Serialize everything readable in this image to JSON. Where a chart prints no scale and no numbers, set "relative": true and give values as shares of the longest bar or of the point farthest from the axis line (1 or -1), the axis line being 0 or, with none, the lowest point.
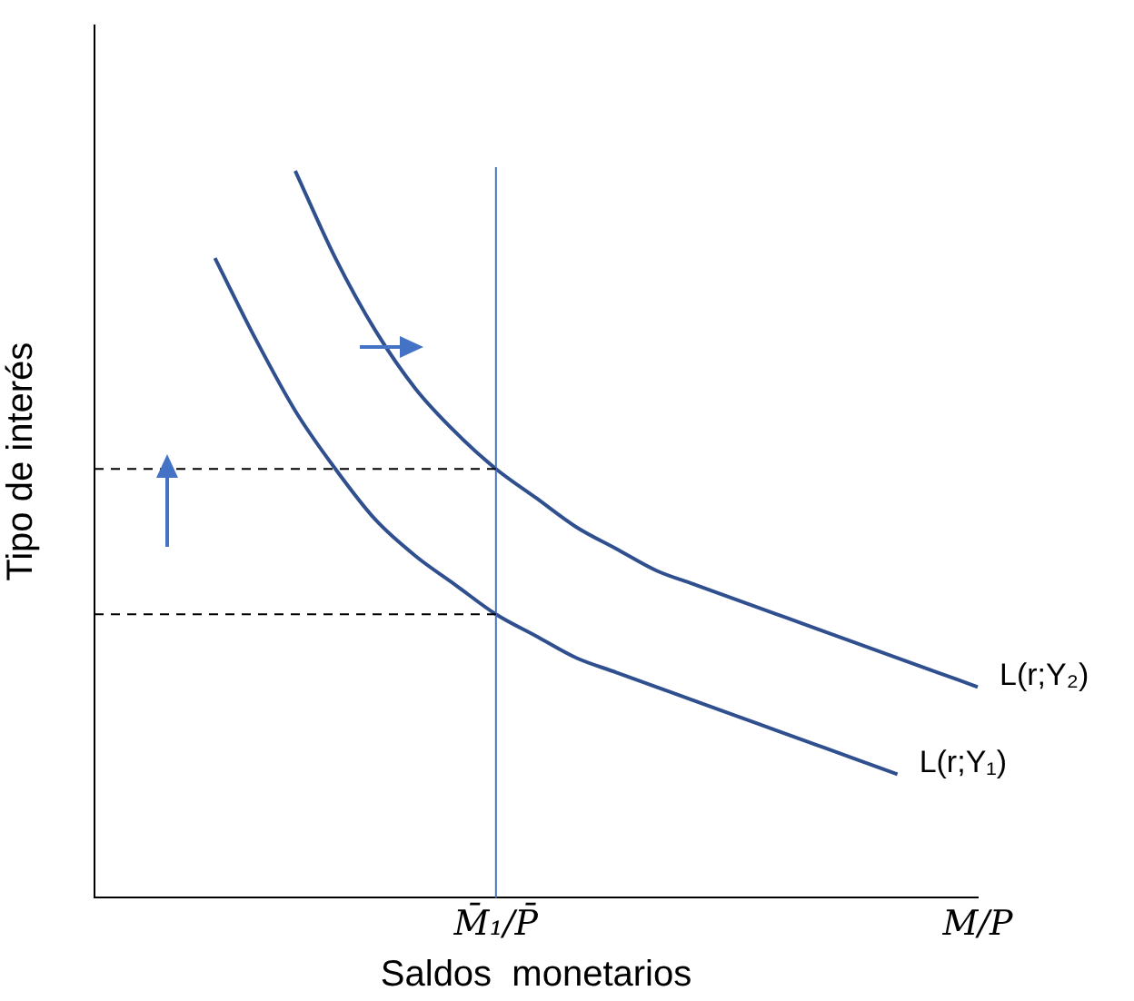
{
  "chart_data": {
    "type": "line",
    "relative": true,
    "ylabel": "Tipo de interés",
    "xlabel": "Saldos  monetarios",
    "categories": [
      null,
      null,
      null,
      null,
      null,
      null,
      null,
      null,
      null,
      null,
      "M̄₁/P̄",
      null,
      null,
      null,
      null,
      null,
      null,
      null,
      null,
      null,
      null,
      null,
      "M/P"
    ],
    "series": [
      {
        "name": "L(r;Y₁)",
        "color": "#2f4f8f",
        "values": [
          null,
          null,
          null,
          0.88,
          0.77,
          0.67,
          0.59,
          0.52,
          0.47,
          0.43,
          0.39,
          0.36,
          0.33,
          0.31,
          0.29,
          0.27,
          0.25,
          0.23,
          0.21,
          0.19,
          0.17,
          null,
          null
        ]
      },
      {
        "name": "L(r;Y₂)",
        "color": "#2f4f8f",
        "values": [
          null,
          null,
          null,
          null,
          null,
          1.0,
          0.88,
          0.78,
          0.7,
          0.64,
          0.59,
          0.55,
          0.51,
          0.48,
          0.45,
          0.43,
          0.41,
          0.39,
          0.37,
          0.35,
          0.33,
          0.31,
          0.29
        ]
      }
    ],
    "ref_lines": [
      {
        "axis": "x",
        "value": "M̄₁/P̄",
        "color": "#4472c4"
      },
      {
        "axis": "y",
        "value": 0.59,
        "color": "#000000",
        "line_style": "dashed"
      },
      {
        "axis": "y",
        "value": 0.39,
        "color": "#000000",
        "line_style": "dashed"
      }
    ],
    "grid": false,
    "legend": false,
    "marker": "none",
    "line_style": "solid"
  }
}
